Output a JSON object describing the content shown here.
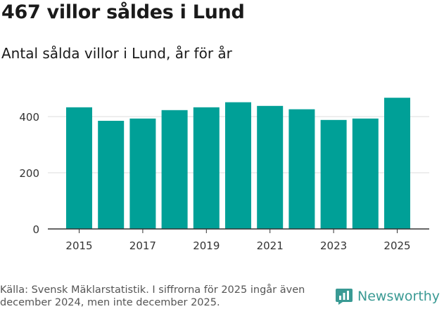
{
  "header": {
    "title": "467 villor såldes i Lund",
    "subtitle": "Antal sålda villor i Lund, år för år"
  },
  "footer": {
    "source": "Källa: Svensk Mäklarstatistik. I siffrorna för 2025 ingår även december 2024, men inte december 2025.",
    "brand": "Newsworthy"
  },
  "colors": {
    "bar": "#00A097",
    "grid": "#dddddd",
    "axis": "#333333",
    "brand": "#3a9a94"
  },
  "chart_data": {
    "type": "bar",
    "title": "467 villor såldes i Lund",
    "subtitle": "Antal sålda villor i Lund, år för år",
    "xlabel": "",
    "ylabel": "",
    "categories": [
      "2015",
      "2016",
      "2017",
      "2018",
      "2019",
      "2020",
      "2021",
      "2022",
      "2023",
      "2024",
      "2025"
    ],
    "values": [
      433,
      385,
      393,
      423,
      433,
      451,
      438,
      426,
      388,
      393,
      467
    ],
    "x_tick_labels": [
      "2015",
      "2017",
      "2019",
      "2021",
      "2023",
      "2025"
    ],
    "y_ticks": [
      0,
      200,
      400
    ],
    "ylim": [
      0,
      520
    ],
    "grid": true
  }
}
